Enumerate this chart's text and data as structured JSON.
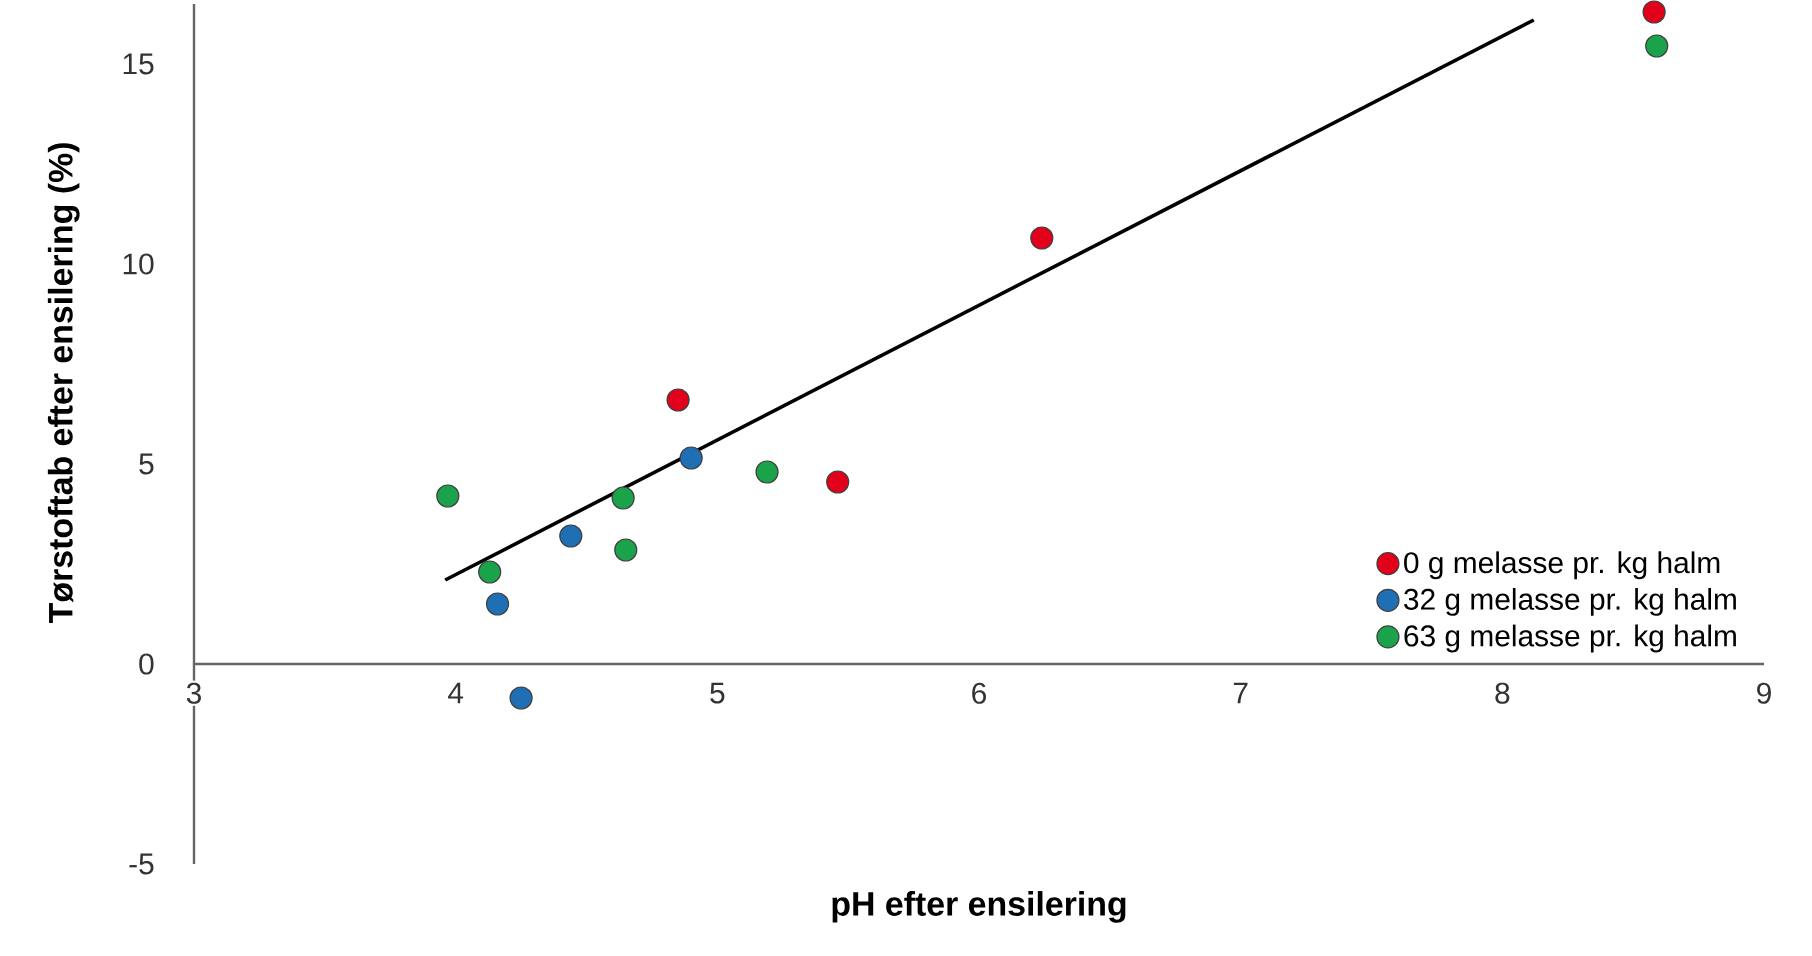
{
  "chart_data": {
    "type": "scatter",
    "xlabel": "pH efter ensilering",
    "ylabel": "Tørstoftab efter ensilering (%)",
    "xlim": [
      3,
      9
    ],
    "ylim": [
      -5,
      16.5
    ],
    "xticks": [
      3,
      4,
      5,
      6,
      7,
      8,
      9
    ],
    "yticks": [
      -5,
      0,
      5,
      10,
      15
    ],
    "legend": "bottom right",
    "marker": "circle",
    "grid": false,
    "series": [
      {
        "name": "0 g melasse pr. kg halm",
        "color": "#e3001b",
        "x": [
          4.85,
          5.46,
          6.24,
          8.58
        ],
        "values": [
          6.6,
          4.55,
          10.65,
          16.3
        ]
      },
      {
        "name": "32 g melasse pr. kg halm",
        "color": "#1f6fb5",
        "x": [
          4.16,
          4.25,
          4.44,
          4.9
        ],
        "values": [
          1.5,
          -0.85,
          3.2,
          5.15
        ]
      },
      {
        "name": "63 g melasse pr. kg halm",
        "color": "#1aa34a",
        "x": [
          3.97,
          4.13,
          4.64,
          4.65,
          5.19,
          8.59
        ],
        "values": [
          4.2,
          2.3,
          4.15,
          2.85,
          4.8,
          15.45
        ]
      },
      {
        "type": "line",
        "marker": "none",
        "color": "#000000",
        "x": [
          3.96,
          8.12
        ],
        "values": [
          2.1,
          16.1
        ]
      }
    ]
  }
}
